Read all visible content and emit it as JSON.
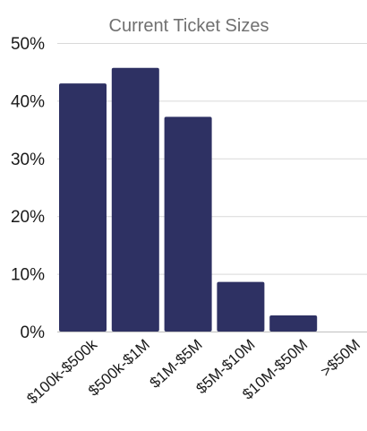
{
  "chart_data": {
    "type": "bar",
    "title": "Current Ticket Sizes",
    "categories": [
      "$100k-$500k",
      "$500k-$1M",
      "$1M-$5M",
      "$5M-$10M",
      "$10M-$50M",
      ">$50M"
    ],
    "values": [
      43,
      45.7,
      37.2,
      8.6,
      2.8,
      0
    ],
    "ylim": [
      0,
      50
    ],
    "yticks": [
      "0%",
      "10%",
      "20%",
      "30%",
      "40%",
      "50%"
    ],
    "grid": true,
    "legend": "none",
    "bar_color": "#2e3163"
  }
}
